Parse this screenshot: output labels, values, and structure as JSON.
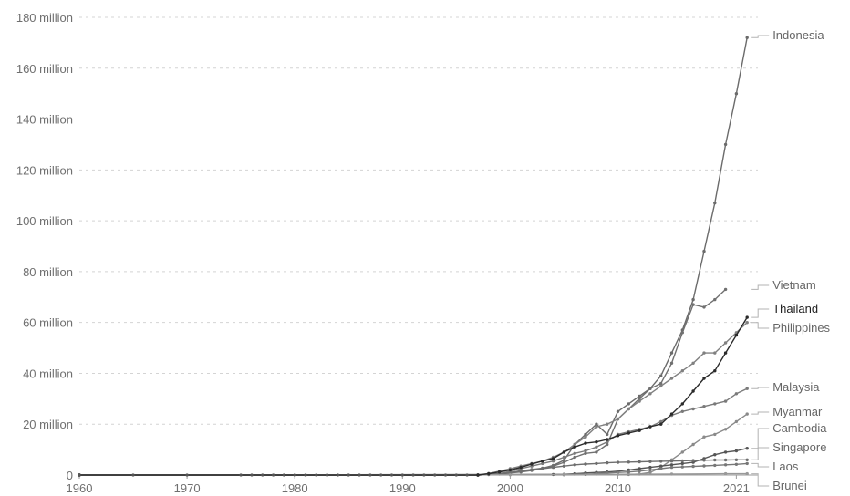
{
  "chart_data": {
    "type": "line",
    "title": "",
    "xlabel": "",
    "ylabel": "",
    "xlim": [
      1960,
      2023
    ],
    "ylim": [
      0,
      180000000
    ],
    "x_ticks": [
      {
        "value": 1960,
        "label": "1960"
      },
      {
        "value": 1970,
        "label": "1970"
      },
      {
        "value": 1980,
        "label": "1980"
      },
      {
        "value": 1990,
        "label": "1990"
      },
      {
        "value": 2000,
        "label": "2000"
      },
      {
        "value": 2010,
        "label": "2010"
      },
      {
        "value": 2021,
        "label": "2021"
      }
    ],
    "y_ticks": [
      {
        "value": 0,
        "label": "0"
      },
      {
        "value": 20000000,
        "label": "20 million"
      },
      {
        "value": 40000000,
        "label": "40 million"
      },
      {
        "value": 60000000,
        "label": "60 million"
      },
      {
        "value": 80000000,
        "label": "80 million"
      },
      {
        "value": 100000000,
        "label": "100 million"
      },
      {
        "value": 120000000,
        "label": "120 million"
      },
      {
        "value": 140000000,
        "label": "140 million"
      },
      {
        "value": 160000000,
        "label": "160 million"
      },
      {
        "value": 180000000,
        "label": "180 million"
      }
    ],
    "grid": true,
    "legend": "inline-right",
    "series": [
      {
        "name": "Indonesia",
        "color": "#6b6b6b",
        "emphasis": false,
        "points": [
          [
            1960,
            0
          ],
          [
            1997,
            0
          ],
          [
            1998,
            0.3
          ],
          [
            1999,
            0.6
          ],
          [
            2000,
            1
          ],
          [
            2001,
            1.7
          ],
          [
            2002,
            2.2
          ],
          [
            2003,
            2.7
          ],
          [
            2004,
            3.8
          ],
          [
            2005,
            5.8
          ],
          [
            2006,
            12
          ],
          [
            2007,
            16
          ],
          [
            2008,
            20
          ],
          [
            2009,
            16
          ],
          [
            2010,
            25
          ],
          [
            2011,
            28
          ],
          [
            2012,
            31
          ],
          [
            2013,
            34
          ],
          [
            2014,
            39
          ],
          [
            2015,
            48
          ],
          [
            2016,
            57
          ],
          [
            2017,
            69
          ],
          [
            2018,
            88
          ],
          [
            2019,
            107
          ],
          [
            2020,
            130
          ],
          [
            2021,
            150
          ],
          [
            2022,
            172
          ]
        ]
      },
      {
        "name": "Vietnam",
        "color": "#707070",
        "emphasis": false,
        "points": [
          [
            1960,
            0
          ],
          [
            1997,
            0
          ],
          [
            1998,
            0.2
          ],
          [
            1999,
            0.4
          ],
          [
            2000,
            0.8
          ],
          [
            2001,
            1.2
          ],
          [
            2002,
            1.8
          ],
          [
            2003,
            2.5
          ],
          [
            2004,
            3.5
          ],
          [
            2005,
            5
          ],
          [
            2006,
            7
          ],
          [
            2007,
            8.5
          ],
          [
            2008,
            9
          ],
          [
            2009,
            12
          ],
          [
            2010,
            22
          ],
          [
            2011,
            26
          ],
          [
            2012,
            30
          ],
          [
            2013,
            34
          ],
          [
            2014,
            36
          ],
          [
            2015,
            44
          ],
          [
            2016,
            56
          ],
          [
            2017,
            67
          ],
          [
            2018,
            66
          ],
          [
            2019,
            69
          ],
          [
            2020,
            73
          ]
        ]
      },
      {
        "name": "Thailand",
        "color": "#2b2b2b",
        "emphasis": true,
        "points": [
          [
            1960,
            0
          ],
          [
            1997,
            0
          ],
          [
            1998,
            0.5
          ],
          [
            1999,
            1.2
          ],
          [
            2000,
            2
          ],
          [
            2001,
            3
          ],
          [
            2002,
            4.3
          ],
          [
            2003,
            5.5
          ],
          [
            2004,
            6.5
          ],
          [
            2005,
            9
          ],
          [
            2006,
            11
          ],
          [
            2007,
            12.5
          ],
          [
            2008,
            13
          ],
          [
            2009,
            14
          ],
          [
            2010,
            15.5
          ],
          [
            2011,
            16.5
          ],
          [
            2012,
            17.5
          ],
          [
            2013,
            19
          ],
          [
            2014,
            20
          ],
          [
            2015,
            24
          ],
          [
            2016,
            28
          ],
          [
            2017,
            33
          ],
          [
            2018,
            38
          ],
          [
            2019,
            41
          ],
          [
            2020,
            48
          ],
          [
            2021,
            55
          ],
          [
            2022,
            62
          ]
        ]
      },
      {
        "name": "Philippines",
        "color": "#808080",
        "emphasis": false,
        "points": [
          [
            1960,
            0
          ],
          [
            1997,
            0
          ],
          [
            1998,
            0.6
          ],
          [
            1999,
            1.5
          ],
          [
            2000,
            2.5
          ],
          [
            2001,
            3.5
          ],
          [
            2002,
            4.5
          ],
          [
            2003,
            5.5
          ],
          [
            2004,
            7
          ],
          [
            2005,
            9
          ],
          [
            2006,
            12
          ],
          [
            2007,
            15
          ],
          [
            2008,
            19
          ],
          [
            2009,
            20
          ],
          [
            2010,
            22
          ],
          [
            2011,
            26
          ],
          [
            2012,
            29
          ],
          [
            2013,
            32
          ],
          [
            2014,
            35
          ],
          [
            2015,
            38
          ],
          [
            2016,
            41
          ],
          [
            2017,
            44
          ],
          [
            2018,
            48
          ],
          [
            2019,
            48
          ],
          [
            2020,
            52
          ],
          [
            2021,
            56
          ],
          [
            2022,
            60
          ]
        ]
      },
      {
        "name": "Malaysia",
        "color": "#7a7a7a",
        "emphasis": false,
        "points": [
          [
            1960,
            0
          ],
          [
            1997,
            0
          ],
          [
            1998,
            0.2
          ],
          [
            1999,
            0.5
          ],
          [
            2000,
            1.5
          ],
          [
            2001,
            2.5
          ],
          [
            2002,
            3.5
          ],
          [
            2003,
            4.5
          ],
          [
            2004,
            5.5
          ],
          [
            2005,
            7
          ],
          [
            2006,
            8.5
          ],
          [
            2007,
            9.5
          ],
          [
            2008,
            11
          ],
          [
            2009,
            13
          ],
          [
            2010,
            16
          ],
          [
            2011,
            17
          ],
          [
            2012,
            18
          ],
          [
            2013,
            19
          ],
          [
            2014,
            21
          ],
          [
            2015,
            23.5
          ],
          [
            2016,
            25
          ],
          [
            2017,
            26
          ],
          [
            2018,
            27
          ],
          [
            2019,
            28
          ],
          [
            2020,
            29
          ],
          [
            2021,
            32
          ],
          [
            2022,
            34
          ]
        ]
      },
      {
        "name": "Myanmar",
        "color": "#8a8a8a",
        "emphasis": false,
        "points": [
          [
            1960,
            0
          ],
          [
            2011,
            0.2
          ],
          [
            2012,
            0.4
          ],
          [
            2013,
            1
          ],
          [
            2014,
            3
          ],
          [
            2015,
            6
          ],
          [
            2016,
            9
          ],
          [
            2017,
            12
          ],
          [
            2018,
            15
          ],
          [
            2019,
            16
          ],
          [
            2020,
            18
          ],
          [
            2021,
            21
          ],
          [
            2022,
            24
          ]
        ]
      },
      {
        "name": "Cambodia",
        "color": "#555555",
        "emphasis": false,
        "points": [
          [
            1960,
            0
          ],
          [
            2004,
            0.2
          ],
          [
            2005,
            0.3
          ],
          [
            2006,
            0.5
          ],
          [
            2007,
            0.8
          ],
          [
            2008,
            1
          ],
          [
            2009,
            1.2
          ],
          [
            2010,
            1.5
          ],
          [
            2011,
            2
          ],
          [
            2012,
            2.5
          ],
          [
            2013,
            3
          ],
          [
            2014,
            3.5
          ],
          [
            2015,
            4
          ],
          [
            2016,
            4.5
          ],
          [
            2017,
            5
          ],
          [
            2018,
            6.5
          ],
          [
            2019,
            8
          ],
          [
            2020,
            9
          ],
          [
            2021,
            9.5
          ],
          [
            2022,
            10.5
          ]
        ]
      },
      {
        "name": "Singapore",
        "color": "#6e6e6e",
        "emphasis": false,
        "points": [
          [
            1960,
            0
          ],
          [
            1997,
            0
          ],
          [
            1998,
            0.2
          ],
          [
            1999,
            0.5
          ],
          [
            2000,
            1
          ],
          [
            2001,
            1.5
          ],
          [
            2002,
            2
          ],
          [
            2003,
            2.5
          ],
          [
            2004,
            3
          ],
          [
            2005,
            3.5
          ],
          [
            2006,
            4
          ],
          [
            2007,
            4.3
          ],
          [
            2008,
            4.5
          ],
          [
            2009,
            4.8
          ],
          [
            2010,
            5
          ],
          [
            2011,
            5.1
          ],
          [
            2012,
            5.2
          ],
          [
            2013,
            5.3
          ],
          [
            2014,
            5.4
          ],
          [
            2015,
            5.5
          ],
          [
            2016,
            5.6
          ],
          [
            2017,
            5.7
          ],
          [
            2018,
            5.8
          ],
          [
            2019,
            5.9
          ],
          [
            2020,
            5.9
          ],
          [
            2021,
            6
          ],
          [
            2022,
            6
          ]
        ]
      },
      {
        "name": "Laos",
        "color": "#777777",
        "emphasis": false,
        "points": [
          [
            1960,
            0
          ],
          [
            2005,
            0.1
          ],
          [
            2007,
            0.3
          ],
          [
            2008,
            0.5
          ],
          [
            2009,
            0.8
          ],
          [
            2010,
            1
          ],
          [
            2011,
            1.2
          ],
          [
            2012,
            1.5
          ],
          [
            2013,
            2
          ],
          [
            2014,
            2.5
          ],
          [
            2015,
            3
          ],
          [
            2016,
            3.2
          ],
          [
            2017,
            3.4
          ],
          [
            2018,
            3.6
          ],
          [
            2019,
            3.8
          ],
          [
            2020,
            4
          ],
          [
            2021,
            4.2
          ],
          [
            2022,
            4.5
          ]
        ]
      },
      {
        "name": "Brunei",
        "color": "#999999",
        "emphasis": false,
        "points": [
          [
            1960,
            0
          ],
          [
            2000,
            0.1
          ],
          [
            2005,
            0.2
          ],
          [
            2010,
            0.3
          ],
          [
            2015,
            0.4
          ],
          [
            2020,
            0.5
          ],
          [
            2022,
            0.5
          ]
        ]
      }
    ]
  }
}
